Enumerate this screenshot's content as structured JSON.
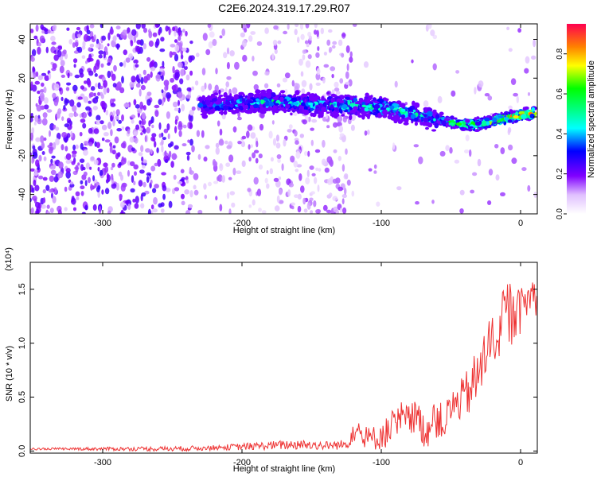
{
  "title": "C2E6.2024.319.17.29.R07",
  "chart_data": [
    {
      "type": "heatmap",
      "xlabel": "Height of straight line (km)",
      "ylabel": "Frequency (Hz)",
      "xlim": [
        -352,
        12
      ],
      "ylim": [
        -50,
        48
      ],
      "xticks": [
        -300,
        -200,
        -100,
        0
      ],
      "yticks": [
        -40,
        -20,
        0,
        20,
        40
      ],
      "colorbar": {
        "label": "Normalized spectral amplitude",
        "range": [
          0.0,
          0.95
        ],
        "ticks": [
          0.0,
          0.2,
          0.4,
          0.6,
          0.8
        ]
      },
      "ridge": {
        "x": [
          -230,
          -200,
          -180,
          -160,
          -140,
          -120,
          -100,
          -80,
          -60,
          -40,
          -30,
          -20,
          -10,
          0,
          10
        ],
        "freq": [
          6,
          7,
          8,
          7,
          6,
          6,
          5,
          2,
          -1,
          -4,
          -4,
          -2,
          0,
          1,
          2
        ],
        "peak_amplitude": [
          0.35,
          0.45,
          0.55,
          0.5,
          0.5,
          0.55,
          0.6,
          0.55,
          0.5,
          0.75,
          0.7,
          0.8,
          0.85,
          0.9,
          0.95
        ]
      }
    },
    {
      "type": "line",
      "xlabel": "Height of straight line (km)",
      "ylabel": "SNR (10 * v/v)",
      "y_multiplier": "(x10⁴)",
      "xlim": [
        -352,
        12
      ],
      "ylim": [
        -0.02,
        1.75
      ],
      "xticks": [
        -300,
        -200,
        -100,
        0
      ],
      "yticks": [
        0.0,
        0.5,
        1.0,
        1.5
      ],
      "series": [
        {
          "color": "#ee3333",
          "x": [
            -352,
            -300,
            -250,
            -220,
            -200,
            -180,
            -160,
            -140,
            -125,
            -118,
            -112,
            -105,
            -100,
            -95,
            -90,
            -85,
            -80,
            -75,
            -70,
            -65,
            -60,
            -55,
            -50,
            -45,
            -40,
            -35,
            -30,
            -25,
            -20,
            -15,
            -10,
            -5,
            0,
            5,
            10,
            12
          ],
          "y": [
            0.02,
            0.02,
            0.02,
            0.03,
            0.04,
            0.05,
            0.06,
            0.05,
            0.06,
            0.2,
            0.1,
            0.12,
            0.15,
            0.18,
            0.22,
            0.3,
            0.25,
            0.35,
            0.2,
            0.22,
            0.3,
            0.25,
            0.4,
            0.45,
            0.5,
            0.6,
            0.7,
            0.9,
            1.05,
            1.1,
            1.2,
            1.25,
            1.3,
            1.4,
            1.5,
            1.3
          ],
          "envelope": [
            0.01,
            0.02,
            0.03,
            0.04,
            0.06,
            0.08,
            0.1,
            0.08,
            0.1,
            0.3,
            0.22,
            0.25,
            0.3,
            0.35,
            0.4,
            0.5,
            0.45,
            0.5,
            0.4,
            0.42,
            0.5,
            0.45,
            0.6,
            0.65,
            0.75,
            0.9,
            1.05,
            1.2,
            1.3,
            1.4,
            1.75,
            1.5,
            1.55,
            1.6,
            1.65,
            1.5
          ]
        }
      ]
    }
  ]
}
